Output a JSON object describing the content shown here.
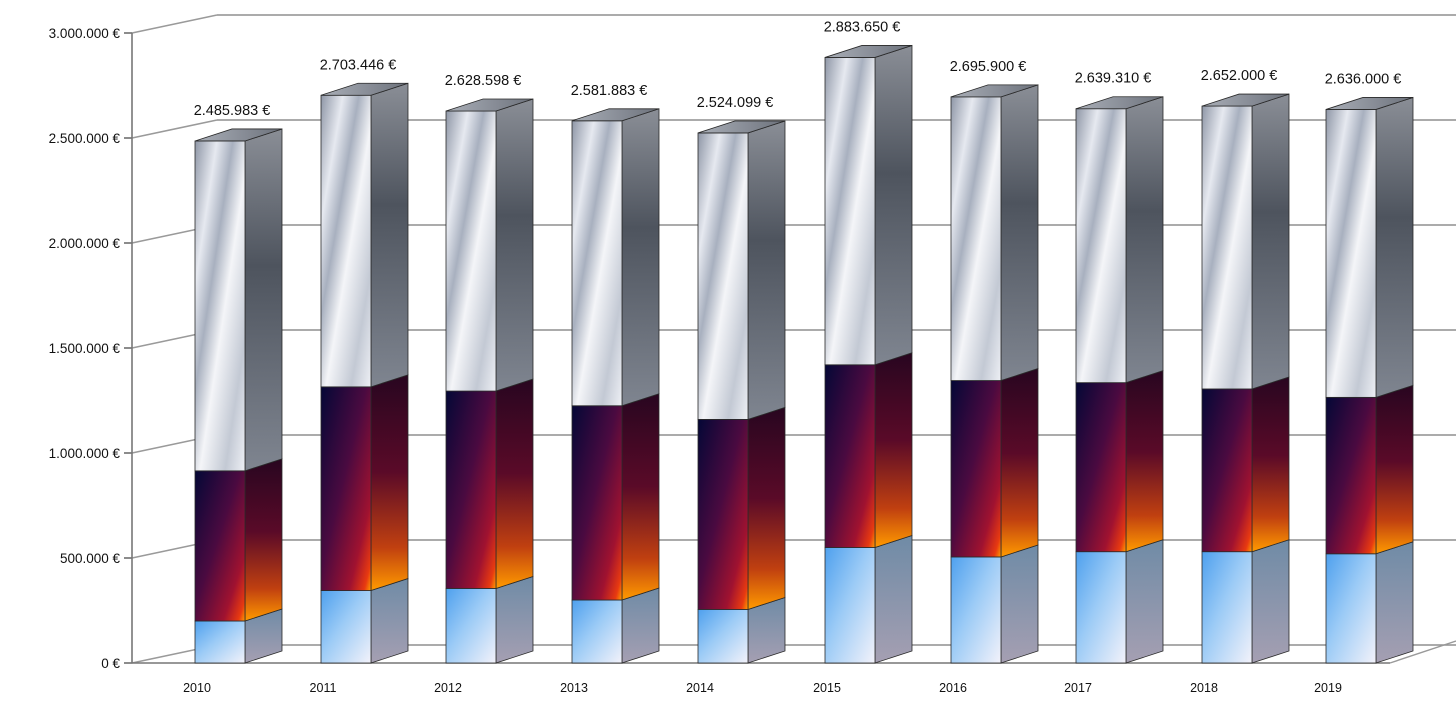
{
  "chart_data": {
    "type": "bar",
    "stacked": true,
    "three_d": true,
    "categories": [
      "2010",
      "2011",
      "2012",
      "2013",
      "2014",
      "2015",
      "2016",
      "2017",
      "2018",
      "2019"
    ],
    "series": [
      {
        "values": [
          200000,
          345000,
          355000,
          300000,
          255000,
          550000,
          505000,
          530000,
          530000,
          520000
        ]
      },
      {
        "values": [
          715000,
          970000,
          940000,
          925000,
          905000,
          870000,
          840000,
          805000,
          775000,
          745000
        ]
      },
      {
        "values": [
          1570983,
          1388446,
          1333598,
          1356883,
          1364099,
          1463650,
          1350900,
          1304310,
          1347000,
          1371000
        ]
      }
    ],
    "total_labels": [
      "2.485.983 €",
      "2.703.446 €",
      "2.628.598 €",
      "2.581.883 €",
      "2.524.099 €",
      "2.883.650 €",
      "2.695.900 €",
      "2.639.310 €",
      "2.652.000 €",
      "2.636.000 €"
    ],
    "y_ticks": [
      0,
      500000,
      1000000,
      1500000,
      2000000,
      2500000,
      3000000
    ],
    "y_tick_labels": [
      "0 €",
      "500.000 €",
      "1.000.000 €",
      "1.500.000 €",
      "2.000.000 €",
      "2.500.000 €",
      "3.000.000 €"
    ],
    "ylim": [
      0,
      3000000
    ],
    "grid": true,
    "legend": "none",
    "colors": {
      "series_0_front": [
        "#5aaaf0",
        "#a8d2f8",
        "#eef0f8"
      ],
      "series_1_front": [
        "#050a40",
        "#6a0838",
        "#b81820",
        "#ff7a00"
      ],
      "series_2_front": [
        "#f2f2f6",
        "#9ea6b4",
        "#dde2ea",
        "#5c6270"
      ],
      "side_dark": "#5d616b",
      "gridline": "#888888",
      "wall_line": "#9a9a9a",
      "text": "#111111"
    }
  }
}
